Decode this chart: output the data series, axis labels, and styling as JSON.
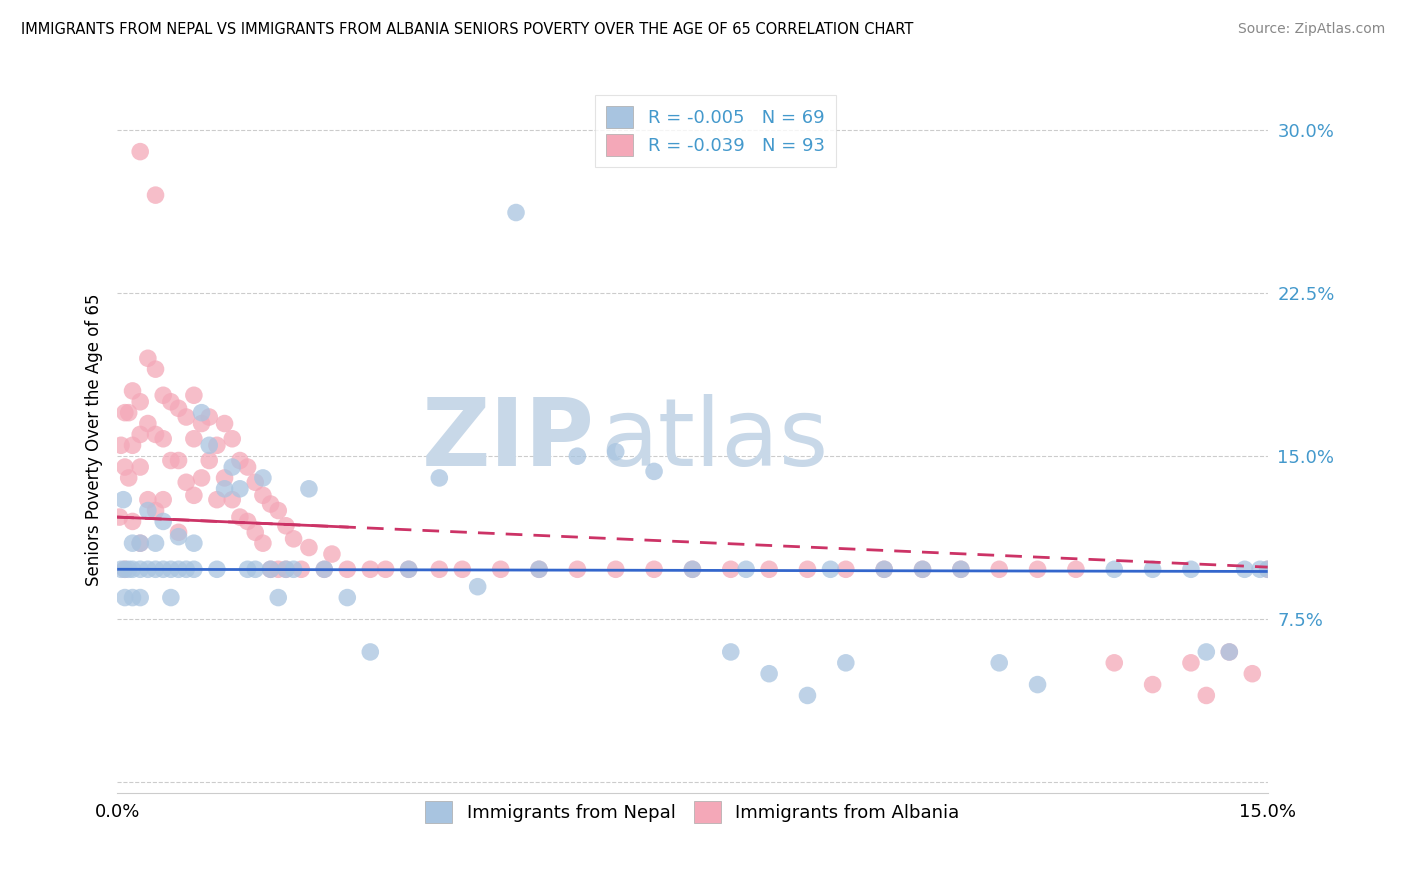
{
  "title": "IMMIGRANTS FROM NEPAL VS IMMIGRANTS FROM ALBANIA SENIORS POVERTY OVER THE AGE OF 65 CORRELATION CHART",
  "source": "Source: ZipAtlas.com",
  "ylabel": "Seniors Poverty Over the Age of 65",
  "xlim": [
    0.0,
    0.15
  ],
  "ylim": [
    -0.005,
    0.32
  ],
  "yticks": [
    0.0,
    0.075,
    0.15,
    0.225,
    0.3
  ],
  "ytick_labels": [
    "",
    "7.5%",
    "15.0%",
    "22.5%",
    "30.0%"
  ],
  "xtick_positions": [
    0.0,
    0.05,
    0.1,
    0.15
  ],
  "xtick_labels": [
    "0.0%",
    "",
    "",
    "15.0%"
  ],
  "nepal_color": "#a8c4e0",
  "albania_color": "#f4a8b8",
  "nepal_R": -0.005,
  "nepal_N": 69,
  "albania_R": -0.039,
  "albania_N": 93,
  "watermark_zip": "ZIP",
  "watermark_atlas": "atlas",
  "legend_nepal_label": "Immigrants from Nepal",
  "legend_albania_label": "Immigrants from Albania",
  "nepal_line_y0": 0.098,
  "nepal_line_y1": 0.097,
  "albania_line_y0": 0.122,
  "albania_line_y1": 0.099,
  "nepal_x": [
    0.0005,
    0.0008,
    0.001,
    0.001,
    0.0015,
    0.002,
    0.002,
    0.002,
    0.003,
    0.003,
    0.003,
    0.004,
    0.004,
    0.005,
    0.005,
    0.006,
    0.006,
    0.007,
    0.007,
    0.008,
    0.008,
    0.009,
    0.01,
    0.01,
    0.011,
    0.012,
    0.013,
    0.014,
    0.015,
    0.016,
    0.017,
    0.018,
    0.019,
    0.02,
    0.021,
    0.022,
    0.023,
    0.025,
    0.027,
    0.03,
    0.033,
    0.038,
    0.042,
    0.047,
    0.052,
    0.055,
    0.06,
    0.065,
    0.07,
    0.075,
    0.08,
    0.082,
    0.085,
    0.09,
    0.093,
    0.095,
    0.1,
    0.105,
    0.11,
    0.115,
    0.12,
    0.13,
    0.135,
    0.14,
    0.142,
    0.145,
    0.147,
    0.149,
    0.15
  ],
  "nepal_y": [
    0.098,
    0.13,
    0.098,
    0.085,
    0.098,
    0.098,
    0.11,
    0.085,
    0.098,
    0.11,
    0.085,
    0.098,
    0.125,
    0.098,
    0.11,
    0.098,
    0.12,
    0.098,
    0.085,
    0.098,
    0.113,
    0.098,
    0.098,
    0.11,
    0.17,
    0.155,
    0.098,
    0.135,
    0.145,
    0.135,
    0.098,
    0.098,
    0.14,
    0.098,
    0.085,
    0.098,
    0.098,
    0.135,
    0.098,
    0.085,
    0.06,
    0.098,
    0.14,
    0.09,
    0.262,
    0.098,
    0.15,
    0.152,
    0.143,
    0.098,
    0.06,
    0.098,
    0.05,
    0.04,
    0.098,
    0.055,
    0.098,
    0.098,
    0.098,
    0.055,
    0.045,
    0.098,
    0.098,
    0.098,
    0.06,
    0.06,
    0.098,
    0.098,
    0.098
  ],
  "albania_x": [
    0.0003,
    0.0005,
    0.001,
    0.001,
    0.001,
    0.0015,
    0.0015,
    0.002,
    0.002,
    0.002,
    0.003,
    0.003,
    0.003,
    0.003,
    0.004,
    0.004,
    0.004,
    0.005,
    0.005,
    0.005,
    0.006,
    0.006,
    0.006,
    0.007,
    0.007,
    0.008,
    0.008,
    0.008,
    0.009,
    0.009,
    0.01,
    0.01,
    0.01,
    0.011,
    0.011,
    0.012,
    0.012,
    0.013,
    0.013,
    0.014,
    0.014,
    0.015,
    0.015,
    0.016,
    0.016,
    0.017,
    0.017,
    0.018,
    0.018,
    0.019,
    0.019,
    0.02,
    0.02,
    0.021,
    0.021,
    0.022,
    0.022,
    0.023,
    0.024,
    0.025,
    0.027,
    0.028,
    0.03,
    0.033,
    0.035,
    0.038,
    0.042,
    0.045,
    0.05,
    0.055,
    0.06,
    0.065,
    0.07,
    0.075,
    0.08,
    0.085,
    0.09,
    0.095,
    0.1,
    0.105,
    0.11,
    0.115,
    0.12,
    0.125,
    0.13,
    0.135,
    0.14,
    0.142,
    0.145,
    0.148,
    0.15,
    0.003,
    0.005
  ],
  "albania_y": [
    0.122,
    0.155,
    0.17,
    0.145,
    0.098,
    0.17,
    0.14,
    0.18,
    0.155,
    0.12,
    0.175,
    0.16,
    0.145,
    0.11,
    0.195,
    0.165,
    0.13,
    0.19,
    0.16,
    0.125,
    0.178,
    0.158,
    0.13,
    0.175,
    0.148,
    0.172,
    0.148,
    0.115,
    0.168,
    0.138,
    0.178,
    0.158,
    0.132,
    0.165,
    0.14,
    0.168,
    0.148,
    0.155,
    0.13,
    0.165,
    0.14,
    0.158,
    0.13,
    0.148,
    0.122,
    0.145,
    0.12,
    0.138,
    0.115,
    0.132,
    0.11,
    0.128,
    0.098,
    0.125,
    0.098,
    0.118,
    0.098,
    0.112,
    0.098,
    0.108,
    0.098,
    0.105,
    0.098,
    0.098,
    0.098,
    0.098,
    0.098,
    0.098,
    0.098,
    0.098,
    0.098,
    0.098,
    0.098,
    0.098,
    0.098,
    0.098,
    0.098,
    0.098,
    0.098,
    0.098,
    0.098,
    0.098,
    0.098,
    0.098,
    0.055,
    0.045,
    0.055,
    0.04,
    0.06,
    0.05,
    0.098,
    0.29,
    0.27
  ]
}
